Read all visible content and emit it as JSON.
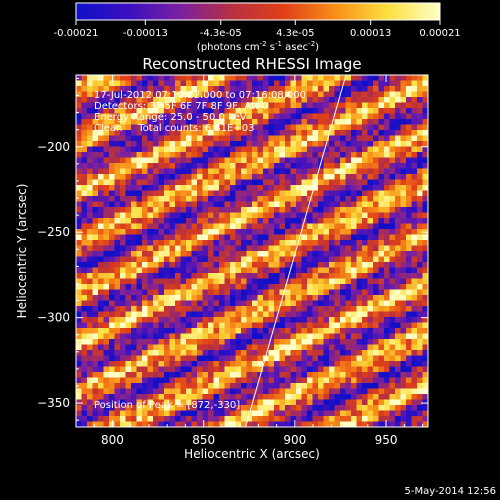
{
  "colorbar": {
    "tick_labels": [
      "-0.00021",
      "-0.00013",
      "-4.3e-05",
      "4.3e-05",
      "0.00013",
      "0.00021"
    ],
    "units_label": "(photons cm",
    "units_sup1": "-2",
    "units_mid": " s",
    "units_sup2": "-1",
    "units_end": " asec",
    "units_sup3": "-2",
    "units_close": ")",
    "colors": [
      "#1010c8",
      "#3a10c0",
      "#7a20a0",
      "#b83040",
      "#e04018",
      "#f89018",
      "#fce040",
      "#ffffc8"
    ]
  },
  "chart_data": {
    "type": "heatmap",
    "title": "Reconstructed RHESSI Image",
    "xlabel": "Heliocentric X (arcsec)",
    "ylabel": "Heliocentric Y (arcsec)",
    "xlim": [
      780,
      973
    ],
    "ylim": [
      -364,
      -158
    ],
    "xticks": [
      800,
      850,
      900,
      950
    ],
    "yticks": [
      -200,
      -250,
      -300,
      -350
    ],
    "grid": false,
    "pattern": "diagonal striped fringes (back-projection), stripes running lower-left to upper-right",
    "value_range": [
      -0.00021,
      0.00021
    ],
    "limb_line": [
      {
        "x": 873,
        "y": -364
      },
      {
        "x": 928,
        "y": -158
      }
    ],
    "annotations": [
      "17-Jul-2012 07:10:22.000 to 07:16:08.000",
      "Detectors: 3F 5F 6F 7F 8F 9F, Att 0",
      "Energy Range: 25.0 - 50.0 keV",
      "Clean     Total counts: 6.31E+03"
    ],
    "peak_label": "Position of Peak = [872,-330]",
    "peak_position": [
      872,
      -330
    ]
  },
  "footer": {
    "date": "5-May-2014 12:56"
  }
}
